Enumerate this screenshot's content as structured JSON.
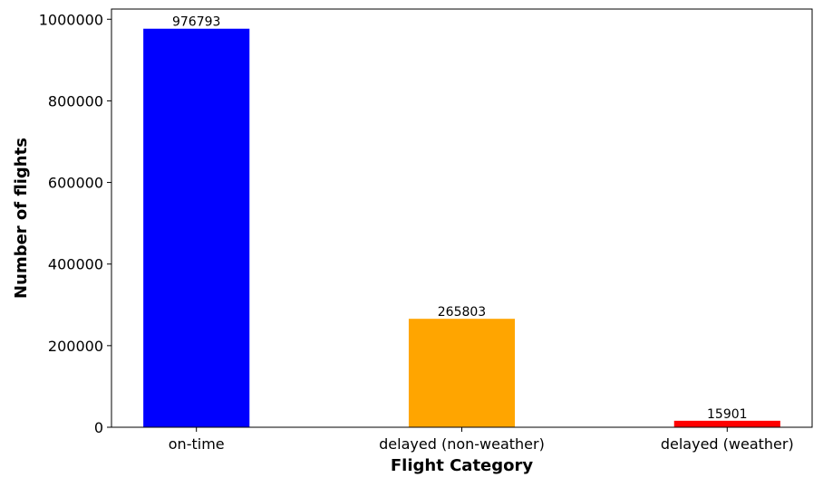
{
  "chart_data": {
    "type": "bar",
    "categories": [
      "on-time",
      "delayed (non-weather)",
      "delayed (weather)"
    ],
    "values": [
      976793,
      265803,
      15901
    ],
    "data_labels": [
      "976793",
      "265803",
      "15901"
    ],
    "colors": [
      "#0000ff",
      "#ffa500",
      "#ff0000"
    ],
    "title": "",
    "xlabel": "Flight Category",
    "ylabel": "Number of flights",
    "ylim": [
      0,
      1025000
    ],
    "yticks": [
      0,
      200000,
      400000,
      600000,
      800000,
      1000000
    ],
    "ytick_labels": [
      "0",
      "200000",
      "400000",
      "600000",
      "800000",
      "1000000"
    ],
    "grid": false,
    "legend": "none"
  }
}
